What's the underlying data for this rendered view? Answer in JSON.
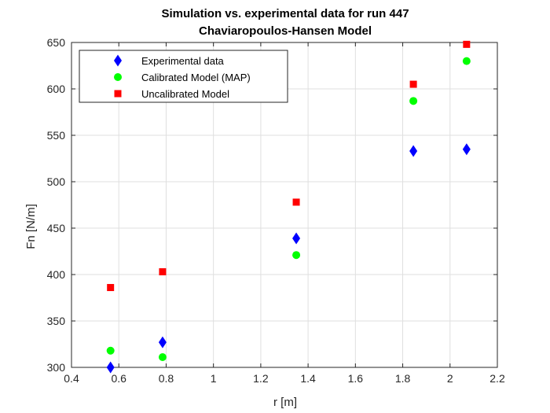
{
  "chart_data": {
    "type": "scatter",
    "title": "Simulation vs. experimental data for run 447",
    "subtitle": "Chaviaropoulos-Hansen Model",
    "xlabel": "r [m]",
    "ylabel": "Fn [N/m]",
    "xlim": [
      0.4,
      2.2
    ],
    "ylim": [
      300,
      650
    ],
    "xticks": [
      "0.4",
      "0.6",
      "0.8",
      "1",
      "1.2",
      "1.4",
      "1.6",
      "1.8",
      "2",
      "2.2"
    ],
    "yticks": [
      "300",
      "350",
      "400",
      "450",
      "500",
      "550",
      "600",
      "650"
    ],
    "grid": true,
    "legend_position": "top-left",
    "series": [
      {
        "name": "Experimental data",
        "marker": "diamond",
        "color": "#0000ff",
        "x": [
          0.565,
          0.785,
          1.35,
          1.845,
          2.07
        ],
        "y": [
          300,
          327,
          439,
          533,
          535
        ]
      },
      {
        "name": "Calibrated Model (MAP)",
        "marker": "circle",
        "color": "#00ff00",
        "x": [
          0.565,
          0.785,
          1.35,
          1.845,
          2.07
        ],
        "y": [
          318,
          311,
          421,
          587,
          630
        ]
      },
      {
        "name": "Uncalibrated Model",
        "marker": "square",
        "color": "#ff0000",
        "x": [
          0.565,
          0.785,
          1.35,
          1.845,
          2.07
        ],
        "y": [
          386,
          403,
          478,
          605,
          648
        ]
      }
    ]
  }
}
